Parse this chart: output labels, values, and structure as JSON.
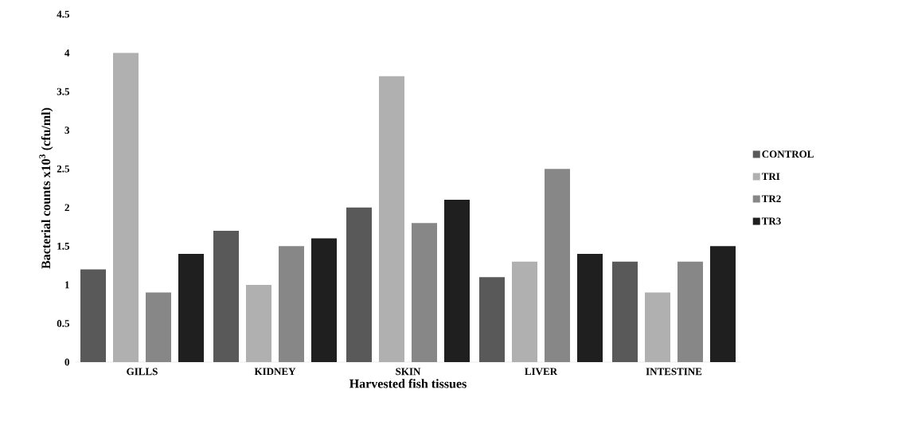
{
  "chart_data": {
    "type": "bar",
    "xlabel": "Harvested fish tissues",
    "ylabel": "Bacterial counts x10$^{3}$ (cfu/ml)",
    "categories": [
      "GILLS",
      "KIDNEY",
      "SKIN",
      "LIVER",
      "INTESTINE"
    ],
    "series": [
      {
        "name": "CONTROL",
        "color": "#595959",
        "values": [
          1.2,
          1.7,
          2.0,
          1.1,
          1.3
        ]
      },
      {
        "name": "TRI",
        "color": "#b0b0b0",
        "values": [
          4.0,
          1.0,
          3.7,
          1.3,
          0.9
        ]
      },
      {
        "name": "TR2",
        "color": "#878787",
        "values": [
          0.9,
          1.5,
          1.8,
          2.5,
          1.3
        ]
      },
      {
        "name": "TR3",
        "color": "#1f1f1f",
        "values": [
          1.4,
          1.6,
          2.1,
          1.4,
          1.5
        ]
      }
    ],
    "ylim": [
      0,
      4.5
    ],
    "yticks": [
      0,
      0.5,
      1,
      1.5,
      2,
      2.5,
      3,
      3.5,
      4,
      4.5
    ],
    "legend": "right"
  }
}
